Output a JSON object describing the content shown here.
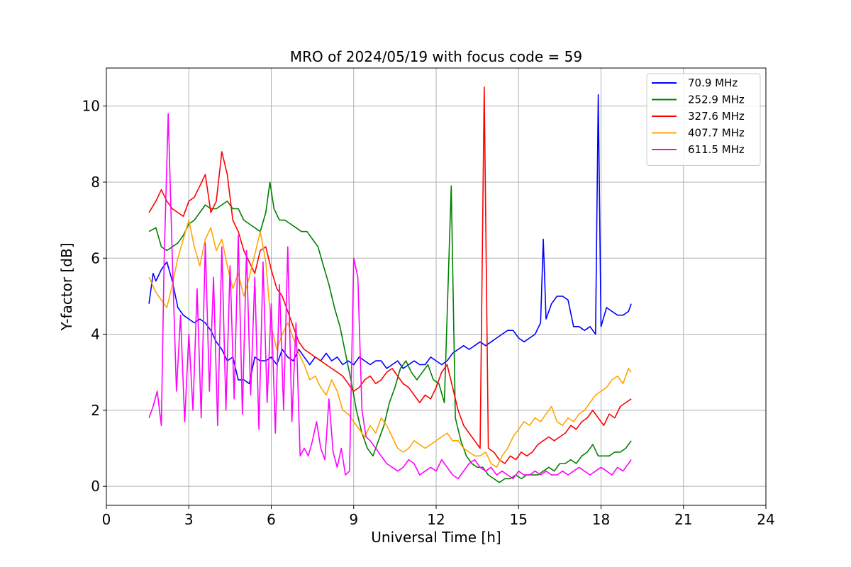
{
  "chart_data": {
    "type": "line",
    "title": "MRO of 2024/05/19 with focus code = 59",
    "xlabel": "Universal Time [h]",
    "ylabel": "Y-factor [dB]",
    "xlim": [
      0,
      24
    ],
    "ylim": [
      -0.5,
      11
    ],
    "xticks": [
      0,
      3,
      6,
      9,
      12,
      15,
      18,
      21,
      24
    ],
    "yticks": [
      0,
      2,
      4,
      6,
      8,
      10
    ],
    "grid": true,
    "legend_position": "top-right",
    "series": [
      {
        "name": " 70.9 MHz",
        "color": "#0000ff",
        "x": [
          1.55,
          1.7,
          1.8,
          2.0,
          2.2,
          2.4,
          2.6,
          2.8,
          3.0,
          3.2,
          3.4,
          3.6,
          3.8,
          4.0,
          4.2,
          4.4,
          4.6,
          4.8,
          5.0,
          5.2,
          5.4,
          5.6,
          5.8,
          6.0,
          6.2,
          6.4,
          6.6,
          6.8,
          7.0,
          7.2,
          7.4,
          7.6,
          7.8,
          8.0,
          8.2,
          8.4,
          8.6,
          8.8,
          9.0,
          9.2,
          9.4,
          9.6,
          9.8,
          10.0,
          10.2,
          10.4,
          10.6,
          10.8,
          11.0,
          11.2,
          11.4,
          11.6,
          11.8,
          12.0,
          12.2,
          12.4,
          12.6,
          12.8,
          13.0,
          13.2,
          13.4,
          13.6,
          13.8,
          14.0,
          14.2,
          14.4,
          14.6,
          14.8,
          15.0,
          15.2,
          15.4,
          15.6,
          15.8,
          15.9,
          16.0,
          16.2,
          16.4,
          16.6,
          16.8,
          17.0,
          17.2,
          17.4,
          17.6,
          17.8,
          17.9,
          18.0,
          18.2,
          18.4,
          18.6,
          18.8,
          19.0,
          19.1
        ],
        "y": [
          4.8,
          5.6,
          5.4,
          5.7,
          5.9,
          5.4,
          4.7,
          4.5,
          4.4,
          4.3,
          4.4,
          4.3,
          4.1,
          3.8,
          3.6,
          3.3,
          3.4,
          2.8,
          2.8,
          2.7,
          3.4,
          3.3,
          3.3,
          3.4,
          3.2,
          3.6,
          3.4,
          3.3,
          3.6,
          3.4,
          3.2,
          3.4,
          3.3,
          3.5,
          3.3,
          3.4,
          3.2,
          3.3,
          3.2,
          3.4,
          3.3,
          3.2,
          3.3,
          3.3,
          3.1,
          3.2,
          3.3,
          3.1,
          3.2,
          3.3,
          3.2,
          3.2,
          3.4,
          3.3,
          3.2,
          3.3,
          3.5,
          3.6,
          3.7,
          3.6,
          3.7,
          3.8,
          3.7,
          3.8,
          3.9,
          4.0,
          4.1,
          4.1,
          3.9,
          3.8,
          3.9,
          4.0,
          4.3,
          6.5,
          4.4,
          4.8,
          5.0,
          5.0,
          4.9,
          4.2,
          4.2,
          4.1,
          4.2,
          4.0,
          10.3,
          4.2,
          4.7,
          4.6,
          4.5,
          4.5,
          4.6,
          4.8
        ]
      },
      {
        "name": "252.9 MHz",
        "color": "#008000",
        "x": [
          1.55,
          1.8,
          2.0,
          2.2,
          2.4,
          2.6,
          2.8,
          3.0,
          3.2,
          3.4,
          3.6,
          3.8,
          4.0,
          4.2,
          4.4,
          4.6,
          4.8,
          5.0,
          5.2,
          5.4,
          5.6,
          5.8,
          5.95,
          6.1,
          6.3,
          6.5,
          6.7,
          6.9,
          7.1,
          7.3,
          7.5,
          7.7,
          7.9,
          8.1,
          8.3,
          8.5,
          8.7,
          8.9,
          9.1,
          9.3,
          9.5,
          9.7,
          9.9,
          10.1,
          10.3,
          10.5,
          10.7,
          10.9,
          11.1,
          11.3,
          11.5,
          11.7,
          11.9,
          12.1,
          12.3,
          12.55,
          12.7,
          12.9,
          13.1,
          13.3,
          13.5,
          13.7,
          13.9,
          14.1,
          14.3,
          14.5,
          14.7,
          14.9,
          15.1,
          15.3,
          15.5,
          15.7,
          15.9,
          16.1,
          16.3,
          16.5,
          16.7,
          16.9,
          17.1,
          17.3,
          17.5,
          17.7,
          17.9,
          18.1,
          18.3,
          18.5,
          18.7,
          18.9,
          19.1
        ],
        "y": [
          6.7,
          6.8,
          6.3,
          6.2,
          6.3,
          6.4,
          6.6,
          6.9,
          7.0,
          7.2,
          7.4,
          7.3,
          7.3,
          7.4,
          7.5,
          7.3,
          7.3,
          7.0,
          6.9,
          6.8,
          6.7,
          7.2,
          8.0,
          7.3,
          7.0,
          7.0,
          6.9,
          6.8,
          6.7,
          6.7,
          6.5,
          6.3,
          5.8,
          5.3,
          4.7,
          4.2,
          3.5,
          2.8,
          2.0,
          1.4,
          1.0,
          0.8,
          1.2,
          1.6,
          2.2,
          2.6,
          3.1,
          3.3,
          3.0,
          2.8,
          3.0,
          3.2,
          2.8,
          2.7,
          2.2,
          7.9,
          1.8,
          1.2,
          0.8,
          0.6,
          0.5,
          0.5,
          0.3,
          0.2,
          0.1,
          0.2,
          0.2,
          0.3,
          0.2,
          0.3,
          0.3,
          0.3,
          0.4,
          0.5,
          0.4,
          0.6,
          0.6,
          0.7,
          0.6,
          0.8,
          0.9,
          1.1,
          0.8,
          0.8,
          0.8,
          0.9,
          0.9,
          1.0,
          1.2
        ]
      },
      {
        "name": "327.6 MHz",
        "color": "#ff0000",
        "x": [
          1.55,
          1.8,
          2.0,
          2.2,
          2.4,
          2.6,
          2.8,
          3.0,
          3.2,
          3.4,
          3.6,
          3.8,
          4.0,
          4.2,
          4.4,
          4.6,
          4.8,
          5.0,
          5.2,
          5.4,
          5.6,
          5.8,
          6.0,
          6.2,
          6.4,
          6.6,
          6.8,
          7.0,
          7.2,
          7.4,
          7.6,
          7.8,
          8.0,
          8.2,
          8.4,
          8.6,
          8.8,
          9.0,
          9.2,
          9.4,
          9.6,
          9.8,
          10.0,
          10.2,
          10.4,
          10.6,
          10.8,
          11.0,
          11.2,
          11.4,
          11.6,
          11.8,
          12.0,
          12.2,
          12.4,
          12.6,
          12.8,
          13.0,
          13.2,
          13.4,
          13.6,
          13.75,
          13.9,
          14.1,
          14.3,
          14.5,
          14.7,
          14.9,
          15.1,
          15.3,
          15.5,
          15.7,
          15.9,
          16.1,
          16.3,
          16.5,
          16.7,
          16.9,
          17.1,
          17.3,
          17.5,
          17.7,
          17.9,
          18.1,
          18.3,
          18.5,
          18.7,
          18.9,
          19.1
        ],
        "y": [
          7.2,
          7.5,
          7.8,
          7.5,
          7.3,
          7.2,
          7.1,
          7.5,
          7.6,
          7.9,
          8.2,
          7.2,
          7.5,
          8.8,
          8.2,
          7.0,
          6.7,
          6.2,
          5.9,
          5.6,
          6.2,
          6.3,
          5.7,
          5.2,
          5.0,
          4.6,
          4.2,
          3.8,
          3.6,
          3.5,
          3.4,
          3.3,
          3.2,
          3.1,
          3.0,
          2.9,
          2.7,
          2.5,
          2.6,
          2.8,
          2.9,
          2.7,
          2.8,
          3.0,
          3.1,
          2.9,
          2.7,
          2.6,
          2.4,
          2.2,
          2.4,
          2.3,
          2.6,
          3.0,
          3.2,
          2.6,
          2.0,
          1.6,
          1.4,
          1.2,
          1.0,
          10.5,
          1.0,
          0.9,
          0.7,
          0.6,
          0.8,
          0.7,
          0.9,
          0.8,
          0.9,
          1.1,
          1.2,
          1.3,
          1.2,
          1.3,
          1.4,
          1.6,
          1.5,
          1.7,
          1.8,
          2.0,
          1.8,
          1.6,
          1.9,
          1.8,
          2.1,
          2.2,
          2.3
        ]
      },
      {
        "name": "407.7 MHz",
        "color": "#ffa500",
        "x": [
          1.55,
          1.8,
          2.0,
          2.2,
          2.4,
          2.6,
          2.8,
          3.0,
          3.2,
          3.4,
          3.6,
          3.8,
          4.0,
          4.2,
          4.4,
          4.6,
          4.8,
          5.0,
          5.2,
          5.4,
          5.6,
          5.8,
          6.0,
          6.2,
          6.4,
          6.6,
          6.8,
          7.0,
          7.2,
          7.4,
          7.6,
          7.8,
          8.0,
          8.2,
          8.4,
          8.6,
          8.8,
          9.0,
          9.2,
          9.4,
          9.6,
          9.8,
          10.0,
          10.2,
          10.4,
          10.6,
          10.8,
          11.0,
          11.2,
          11.4,
          11.6,
          11.8,
          12.0,
          12.2,
          12.4,
          12.6,
          12.8,
          13.0,
          13.2,
          13.4,
          13.6,
          13.8,
          14.0,
          14.2,
          14.4,
          14.6,
          14.8,
          15.0,
          15.2,
          15.4,
          15.6,
          15.8,
          16.0,
          16.2,
          16.4,
          16.6,
          16.8,
          17.0,
          17.2,
          17.4,
          17.6,
          17.8,
          18.0,
          18.2,
          18.4,
          18.6,
          18.8,
          19.0,
          19.1
        ],
        "y": [
          5.5,
          5.1,
          4.9,
          4.7,
          5.3,
          6.0,
          6.5,
          7.0,
          6.3,
          5.8,
          6.5,
          6.8,
          6.2,
          6.5,
          5.8,
          5.2,
          5.6,
          5.0,
          5.5,
          6.1,
          6.7,
          5.9,
          4.2,
          3.6,
          4.0,
          4.3,
          3.9,
          3.5,
          3.2,
          2.8,
          2.9,
          2.6,
          2.4,
          2.8,
          2.5,
          2.0,
          1.9,
          1.7,
          1.5,
          1.3,
          1.6,
          1.4,
          1.8,
          1.6,
          1.3,
          1.0,
          0.9,
          1.0,
          1.2,
          1.1,
          1.0,
          1.1,
          1.2,
          1.3,
          1.4,
          1.2,
          1.2,
          1.0,
          0.9,
          0.8,
          0.8,
          0.9,
          0.6,
          0.5,
          0.8,
          1.0,
          1.3,
          1.5,
          1.7,
          1.6,
          1.8,
          1.7,
          1.9,
          2.1,
          1.7,
          1.6,
          1.8,
          1.7,
          1.9,
          2.0,
          2.2,
          2.4,
          2.5,
          2.6,
          2.8,
          2.9,
          2.7,
          3.1,
          3.0
        ]
      },
      {
        "name": "611.5 MHz",
        "color": "#ff00ff",
        "x": [
          1.55,
          1.7,
          1.85,
          2.0,
          2.1,
          2.25,
          2.4,
          2.55,
          2.7,
          2.85,
          3.0,
          3.15,
          3.3,
          3.45,
          3.6,
          3.75,
          3.9,
          4.05,
          4.2,
          4.35,
          4.5,
          4.65,
          4.8,
          4.95,
          5.1,
          5.25,
          5.4,
          5.55,
          5.7,
          5.85,
          6.0,
          6.15,
          6.3,
          6.45,
          6.6,
          6.75,
          6.9,
          7.05,
          7.2,
          7.35,
          7.5,
          7.65,
          7.8,
          7.95,
          8.1,
          8.25,
          8.4,
          8.55,
          8.7,
          8.85,
          9.0,
          9.15,
          9.3,
          9.45,
          9.6,
          9.8,
          10.0,
          10.2,
          10.4,
          10.6,
          10.8,
          11.0,
          11.2,
          11.4,
          11.6,
          11.8,
          12.0,
          12.2,
          12.4,
          12.6,
          12.8,
          13.0,
          13.2,
          13.4,
          13.6,
          13.8,
          14.0,
          14.2,
          14.4,
          14.6,
          14.8,
          15.0,
          15.2,
          15.4,
          15.6,
          15.8,
          16.0,
          16.2,
          16.4,
          16.6,
          16.8,
          17.0,
          17.2,
          17.4,
          17.6,
          17.8,
          18.0,
          18.2,
          18.4,
          18.6,
          18.8,
          19.0,
          19.1
        ],
        "y": [
          1.8,
          2.1,
          2.5,
          1.6,
          5.9,
          9.8,
          6.0,
          2.5,
          4.5,
          1.7,
          4.0,
          2.0,
          5.2,
          1.8,
          6.4,
          2.5,
          5.5,
          1.6,
          6.3,
          2.0,
          5.8,
          2.3,
          6.6,
          1.9,
          6.2,
          2.4,
          5.5,
          1.5,
          5.9,
          2.2,
          4.8,
          1.4,
          5.3,
          2.0,
          6.3,
          1.7,
          4.3,
          0.8,
          1.0,
          0.8,
          1.2,
          1.7,
          1.0,
          0.7,
          2.3,
          0.9,
          0.5,
          1.0,
          0.3,
          0.4,
          6.0,
          5.5,
          2.0,
          1.3,
          1.2,
          1.0,
          0.8,
          0.6,
          0.5,
          0.4,
          0.5,
          0.7,
          0.6,
          0.3,
          0.4,
          0.5,
          0.4,
          0.7,
          0.5,
          0.3,
          0.2,
          0.4,
          0.6,
          0.7,
          0.5,
          0.4,
          0.5,
          0.3,
          0.4,
          0.3,
          0.2,
          0.4,
          0.3,
          0.3,
          0.4,
          0.3,
          0.4,
          0.3,
          0.3,
          0.4,
          0.3,
          0.4,
          0.5,
          0.4,
          0.3,
          0.4,
          0.5,
          0.4,
          0.3,
          0.5,
          0.4,
          0.6,
          0.7
        ]
      }
    ]
  }
}
